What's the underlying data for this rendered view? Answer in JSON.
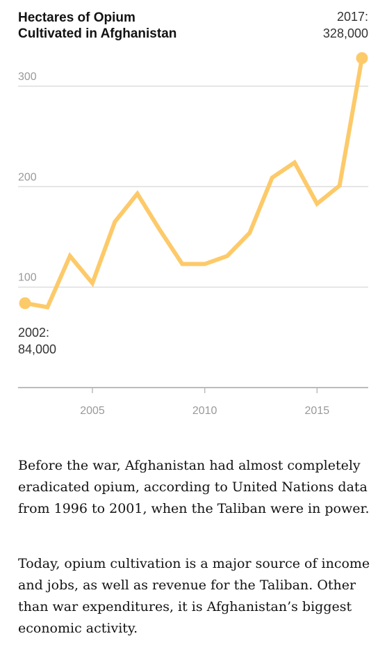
{
  "chart_data": {
    "type": "line",
    "title_lines": [
      "Hectares of Opium",
      "Cultivated in Afghanistan"
    ],
    "x": [
      2002,
      2003,
      2004,
      2005,
      2006,
      2007,
      2008,
      2009,
      2010,
      2011,
      2012,
      2013,
      2014,
      2015,
      2016,
      2017
    ],
    "values": [
      84000,
      80000,
      131000,
      104000,
      165000,
      193000,
      157000,
      123000,
      123000,
      131000,
      154000,
      209000,
      224000,
      183000,
      201000,
      328000
    ],
    "xlim": [
      2002,
      2017
    ],
    "ylim": [
      0,
      330000
    ],
    "y_ticks": [
      {
        "value": 100000,
        "label": "100"
      },
      {
        "value": 200000,
        "label": "200"
      },
      {
        "value": 300000,
        "label": "300"
      }
    ],
    "x_ticks": [
      {
        "value": 2005,
        "label": "2005"
      },
      {
        "value": 2010,
        "label": "2010"
      },
      {
        "value": 2015,
        "label": "2015"
      }
    ],
    "grid": true,
    "callouts": [
      {
        "year": 2002,
        "lines": [
          "2002:",
          "84,000"
        ]
      },
      {
        "year": 2017,
        "lines": [
          "2017:",
          "328,000"
        ]
      }
    ],
    "line_color": "#fdca6a",
    "grid_color": "#dddddd",
    "axis_color": "#bbbbbb"
  },
  "text": {
    "paragraph1": "Before the war, Afghanistan had almost completely eradicated opium, according to United Nations data from 1996 to 2001, when the Taliban were in power.",
    "paragraph2": "Today, opium cultivation is a major source of income and jobs, as well as revenue for the Taliban. Other than war expenditures, it is Afghanistan’s biggest economic activity."
  }
}
